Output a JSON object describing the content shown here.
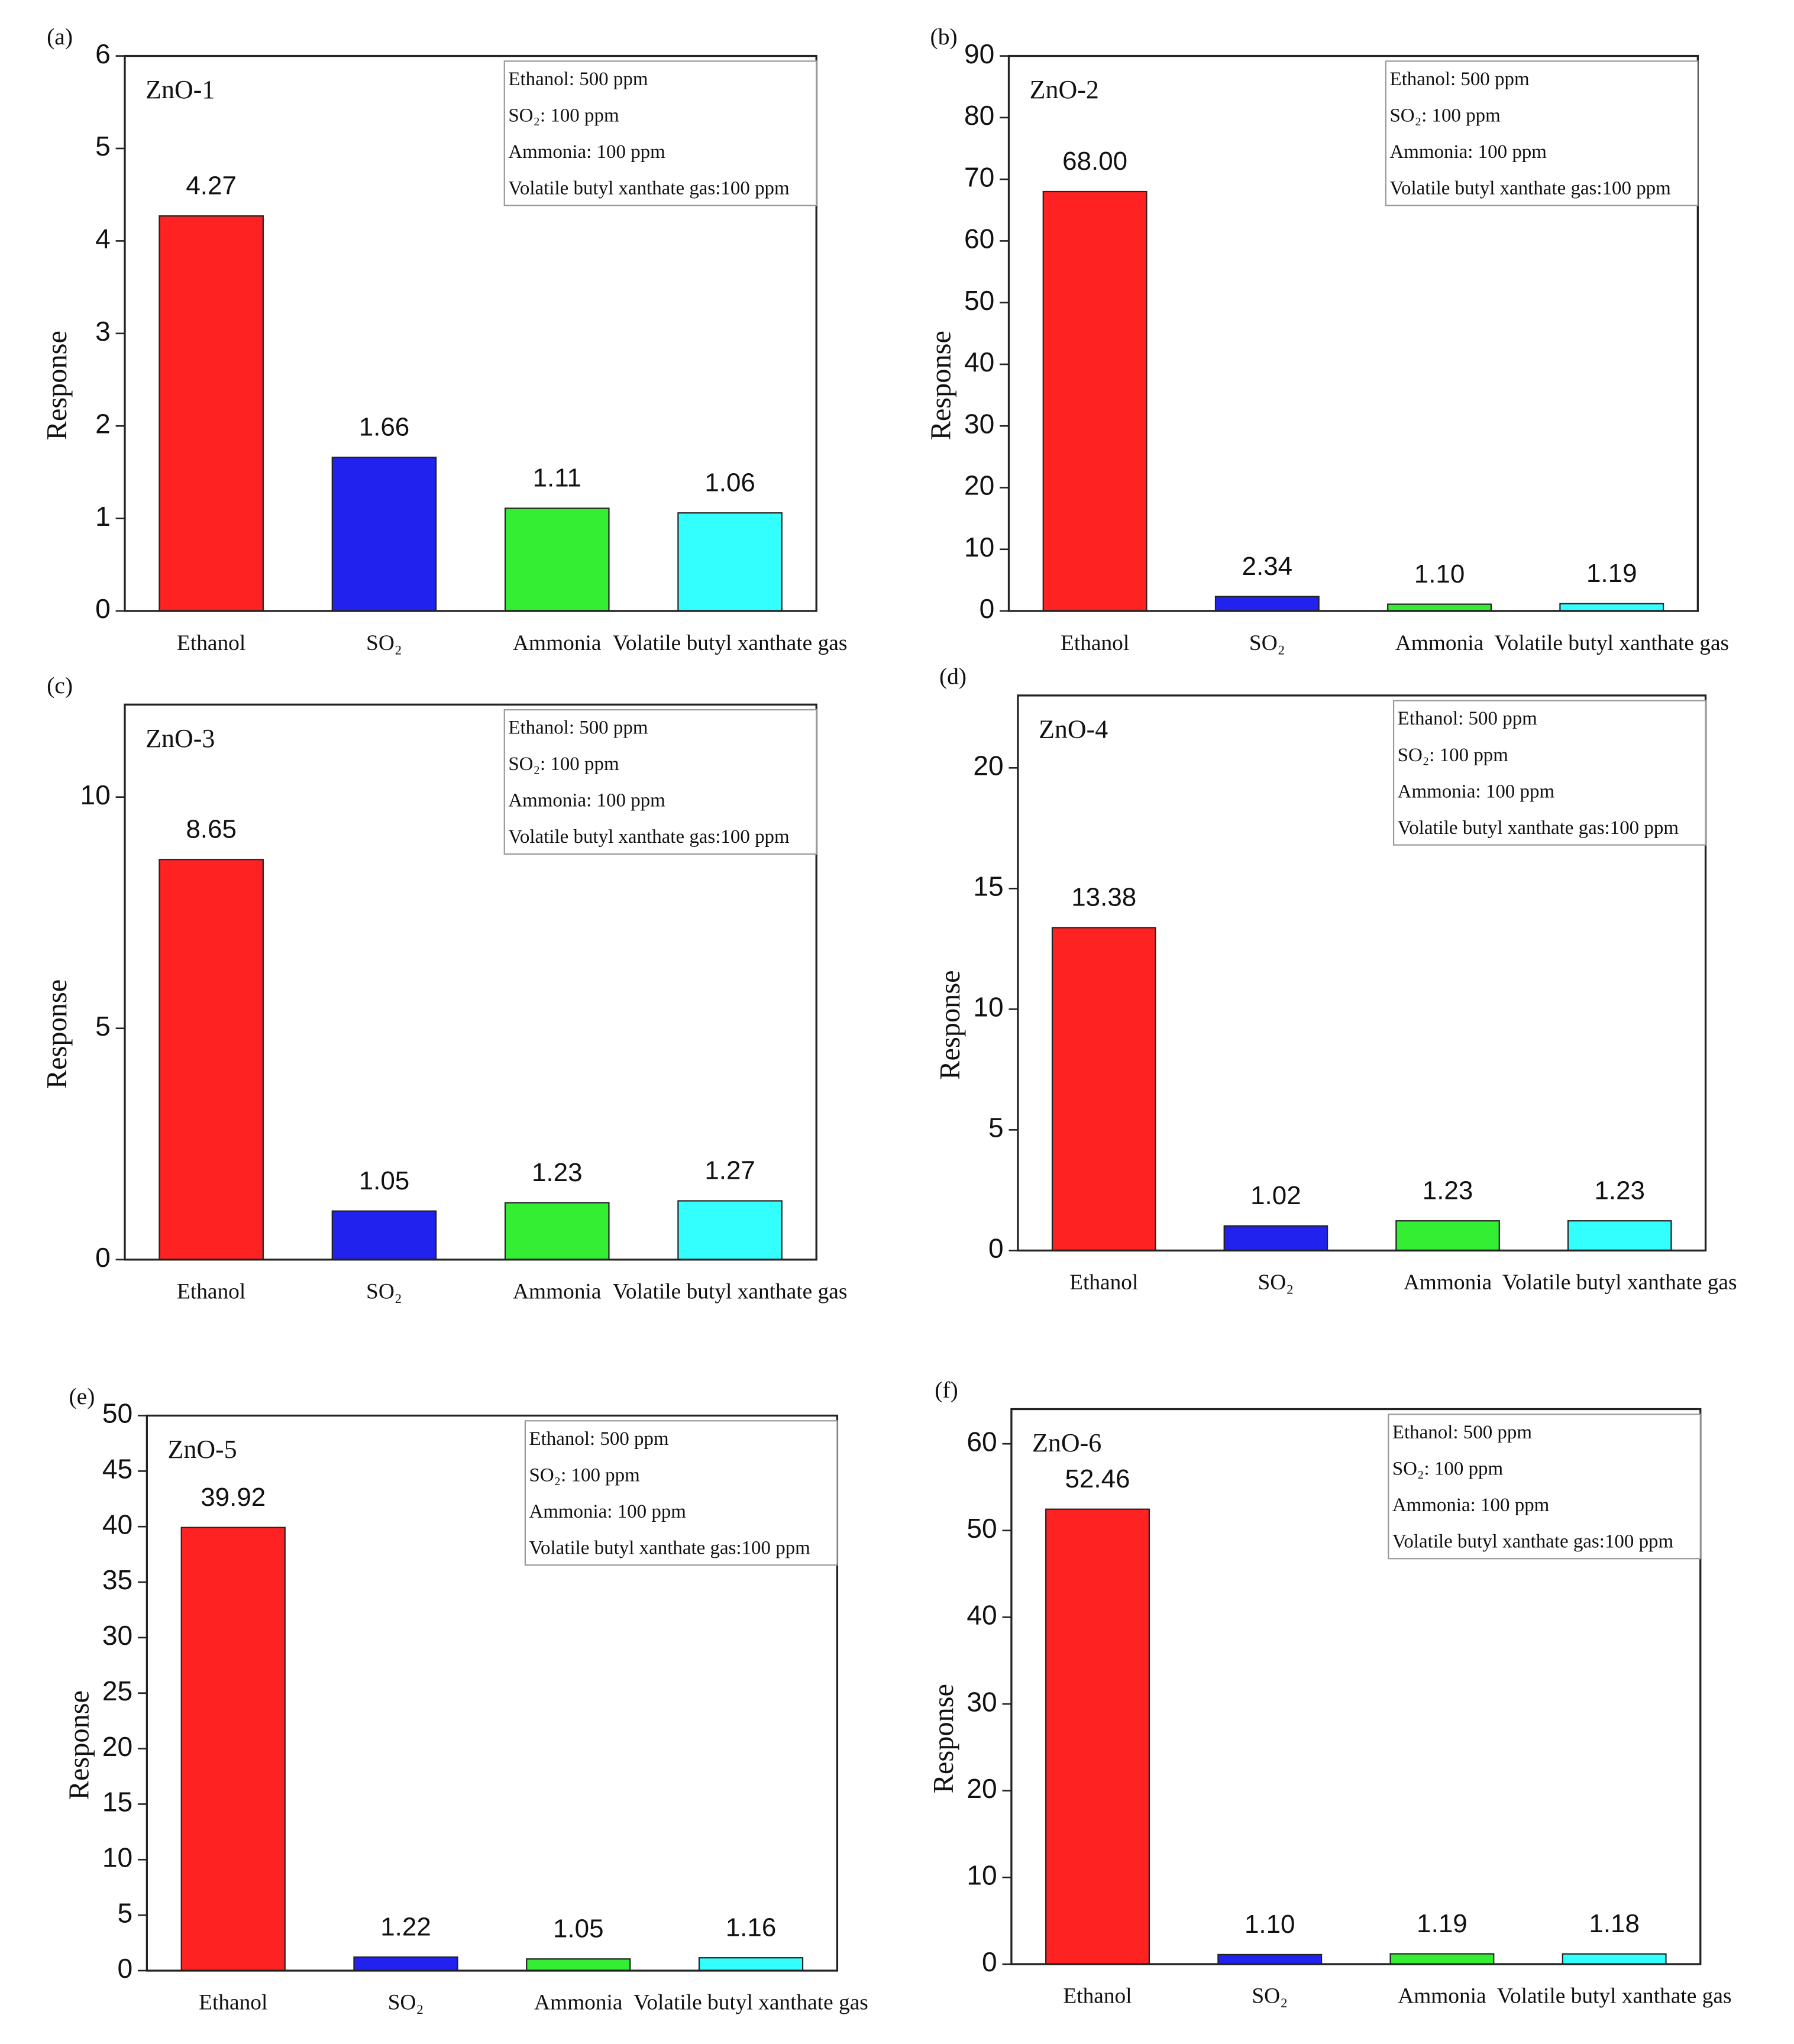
{
  "chart_data": [
    {
      "type": "bar",
      "panel": "(a)",
      "title": "ZnO-1",
      "ylabel": "Response",
      "notes": [
        "Ethanol: 500 ppm",
        "SO₂: 100 ppm",
        "Ammonia: 100 ppm",
        "Volatile butyl xanthate gas:100 ppm"
      ],
      "categories": [
        "Ethanol",
        "SO₂",
        "Ammonia",
        "Volatile butyl xanthate gas"
      ],
      "values": [
        4.27,
        1.66,
        1.11,
        1.06
      ],
      "value_labels": [
        "4.27",
        "1.66",
        "1.11",
        "1.06"
      ],
      "colors": [
        "#ff2222",
        "#2222ee",
        "#33ee33",
        "#33ffff"
      ],
      "ylim": [
        0,
        6
      ],
      "yticks": [
        0,
        1,
        2,
        3,
        4,
        5,
        6
      ]
    },
    {
      "type": "bar",
      "panel": "(b)",
      "title": "ZnO-2",
      "ylabel": "Response",
      "notes": [
        "Ethanol: 500 ppm",
        "SO₂: 100 ppm",
        "Ammonia: 100 ppm",
        "Volatile butyl xanthate gas:100 ppm"
      ],
      "categories": [
        "Ethanol",
        "SO₂",
        "Ammonia",
        "Volatile butyl xanthate gas"
      ],
      "values": [
        68.0,
        2.34,
        1.1,
        1.19
      ],
      "value_labels": [
        "68.00",
        "2.34",
        "1.10",
        "1.19"
      ],
      "colors": [
        "#ff2222",
        "#2222ee",
        "#33ee33",
        "#33ffff"
      ],
      "ylim": [
        0,
        90
      ],
      "yticks": [
        0,
        10,
        20,
        30,
        40,
        50,
        60,
        70,
        80,
        90
      ]
    },
    {
      "type": "bar",
      "panel": "(c)",
      "title": "ZnO-3",
      "ylabel": "Response",
      "notes": [
        "Ethanol: 500 ppm",
        "SO₂: 100 ppm",
        "Ammonia: 100 ppm",
        "Volatile butyl xanthate gas:100 ppm"
      ],
      "categories": [
        "Ethanol",
        "SO₂",
        "Ammonia",
        "Volatile butyl xanthate gas"
      ],
      "values": [
        8.65,
        1.05,
        1.23,
        1.27
      ],
      "value_labels": [
        "8.65",
        "1.05",
        "1.23",
        "1.27"
      ],
      "colors": [
        "#ff2222",
        "#2222ee",
        "#33ee33",
        "#33ffff"
      ],
      "ylim": [
        0,
        12
      ],
      "yticks": [
        0,
        5,
        10
      ]
    },
    {
      "type": "bar",
      "panel": "(d)",
      "title": "ZnO-4",
      "ylabel": "Response",
      "notes": [
        "Ethanol: 500 ppm",
        "SO₂: 100 ppm",
        "Ammonia: 100 ppm",
        "Volatile butyl xanthate gas:100 ppm"
      ],
      "categories": [
        "Ethanol",
        "SO₂",
        "Ammonia",
        "Volatile butyl xanthate gas"
      ],
      "values": [
        13.38,
        1.02,
        1.23,
        1.23
      ],
      "value_labels": [
        "13.38",
        "1.02",
        "1.23",
        "1.23"
      ],
      "colors": [
        "#ff2222",
        "#2222ee",
        "#33ee33",
        "#33ffff"
      ],
      "ylim": [
        0,
        23
      ],
      "yticks": [
        0,
        5,
        10,
        15,
        20
      ]
    },
    {
      "type": "bar",
      "panel": "(e)",
      "title": "ZnO-5",
      "ylabel": "Response",
      "notes": [
        "Ethanol: 500 ppm",
        "SO₂: 100 ppm",
        "Ammonia: 100 ppm",
        "Volatile butyl xanthate gas:100 ppm"
      ],
      "categories": [
        "Ethanol",
        "SO₂",
        "Ammonia",
        "Volatile butyl xanthate gas"
      ],
      "values": [
        39.92,
        1.22,
        1.05,
        1.16
      ],
      "value_labels": [
        "39.92",
        "1.22",
        "1.05",
        "1.16"
      ],
      "colors": [
        "#ff2222",
        "#2222ee",
        "#33ee33",
        "#33ffff"
      ],
      "ylim": [
        0,
        50
      ],
      "yticks": [
        0,
        5,
        10,
        15,
        20,
        25,
        30,
        35,
        40,
        45,
        50
      ]
    },
    {
      "type": "bar",
      "panel": "(f)",
      "title": "ZnO-6",
      "ylabel": "Response",
      "notes": [
        "Ethanol: 500 ppm",
        "SO₂: 100 ppm",
        "Ammonia: 100 ppm",
        "Volatile butyl xanthate gas:100 ppm"
      ],
      "categories": [
        "Ethanol",
        "SO₂",
        "Ammonia",
        "Volatile butyl xanthate gas"
      ],
      "values": [
        52.46,
        1.1,
        1.19,
        1.18
      ],
      "value_labels": [
        "52.46",
        "1.10",
        "1.19",
        "1.18"
      ],
      "colors": [
        "#ff2222",
        "#2222ee",
        "#33ee33",
        "#33ffff"
      ],
      "ylim": [
        0,
        64
      ],
      "yticks": [
        0,
        10,
        20,
        30,
        40,
        50,
        60
      ]
    }
  ]
}
